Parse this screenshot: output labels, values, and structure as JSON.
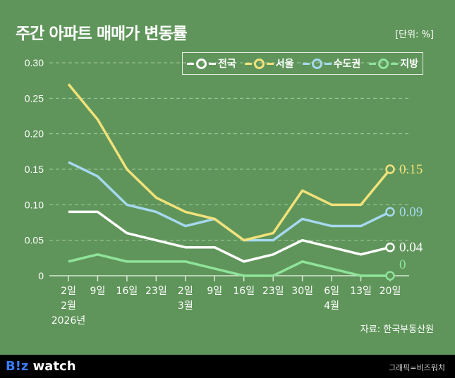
{
  "header": {
    "title": "주간 아파트 매매가 변동률",
    "unit": "[단위: %]"
  },
  "source": "자료: 한국부동산원",
  "footer": {
    "logo_text": "B!z watch",
    "credit": "그래픽=비즈워치"
  },
  "chart_data": {
    "type": "line",
    "title": "주간 아파트 매매가 변동률",
    "x": [
      [
        "2일",
        "2월",
        "2026년"
      ],
      [
        "9일"
      ],
      [
        "16일"
      ],
      [
        "23일"
      ],
      [
        "2일",
        "3월"
      ],
      [
        "9일"
      ],
      [
        "16일"
      ],
      [
        "23일"
      ],
      [
        "30일"
      ],
      [
        "6일",
        "4월"
      ],
      [
        "13일"
      ],
      [
        "20일"
      ]
    ],
    "ylim": [
      0,
      0.3
    ],
    "yticks": [
      "0",
      "0.05",
      "0.10",
      "0.15",
      "0.20",
      "0.25",
      "0.30"
    ],
    "ytick_values": [
      0,
      0.05,
      0.1,
      0.15,
      0.2,
      0.25,
      0.3
    ],
    "grid": true,
    "legend_placement": "top-right",
    "series": [
      {
        "name": "전국",
        "color": "#ffffff",
        "values": [
          0.09,
          0.09,
          0.06,
          0.05,
          0.04,
          0.04,
          0.02,
          0.03,
          0.05,
          0.04,
          0.03,
          0.04
        ],
        "end_label": "0.04"
      },
      {
        "name": "서울",
        "color": "#f2e27a",
        "values": [
          0.27,
          0.22,
          0.15,
          0.11,
          0.09,
          0.08,
          0.05,
          0.06,
          0.12,
          0.1,
          0.1,
          0.15
        ],
        "end_label": "0.15"
      },
      {
        "name": "수도권",
        "color": "#a6d8f0",
        "values": [
          0.16,
          0.14,
          0.1,
          0.09,
          0.07,
          0.08,
          0.05,
          0.05,
          0.08,
          0.07,
          0.07,
          0.09
        ],
        "end_label": "0.09"
      },
      {
        "name": "지방",
        "color": "#8fe39a",
        "values": [
          0.02,
          0.03,
          0.02,
          0.02,
          0.02,
          0.01,
          0.0,
          0.0,
          0.02,
          0.01,
          0.0,
          0.0
        ],
        "end_label": "0"
      }
    ]
  }
}
